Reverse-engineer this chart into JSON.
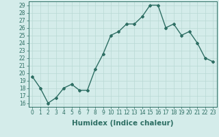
{
  "x": [
    0,
    1,
    2,
    3,
    4,
    5,
    6,
    7,
    8,
    9,
    10,
    11,
    12,
    13,
    14,
    15,
    16,
    17,
    18,
    19,
    20,
    21,
    22,
    23
  ],
  "y": [
    19.5,
    18.0,
    16.0,
    16.7,
    18.0,
    18.5,
    17.7,
    17.7,
    20.5,
    22.5,
    25.0,
    25.5,
    26.5,
    26.5,
    27.5,
    29.0,
    29.0,
    26.0,
    26.5,
    25.0,
    25.5,
    24.0,
    22.0,
    21.5
  ],
  "line_color": "#2d6e63",
  "marker": "D",
  "marker_size": 2.0,
  "bg_color": "#d4ecea",
  "grid_color": "#b8d8d4",
  "xlabel": "Humidex (Indice chaleur)",
  "xlim": [
    -0.5,
    23.5
  ],
  "ylim": [
    15.5,
    29.5
  ],
  "yticks": [
    16,
    17,
    18,
    19,
    20,
    21,
    22,
    23,
    24,
    25,
    26,
    27,
    28,
    29
  ],
  "xticks": [
    0,
    1,
    2,
    3,
    4,
    5,
    6,
    7,
    8,
    9,
    10,
    11,
    12,
    13,
    14,
    15,
    16,
    17,
    18,
    19,
    20,
    21,
    22,
    23
  ],
  "tick_label_fontsize": 5.5,
  "xlabel_fontsize": 7.5,
  "line_width": 1.0
}
